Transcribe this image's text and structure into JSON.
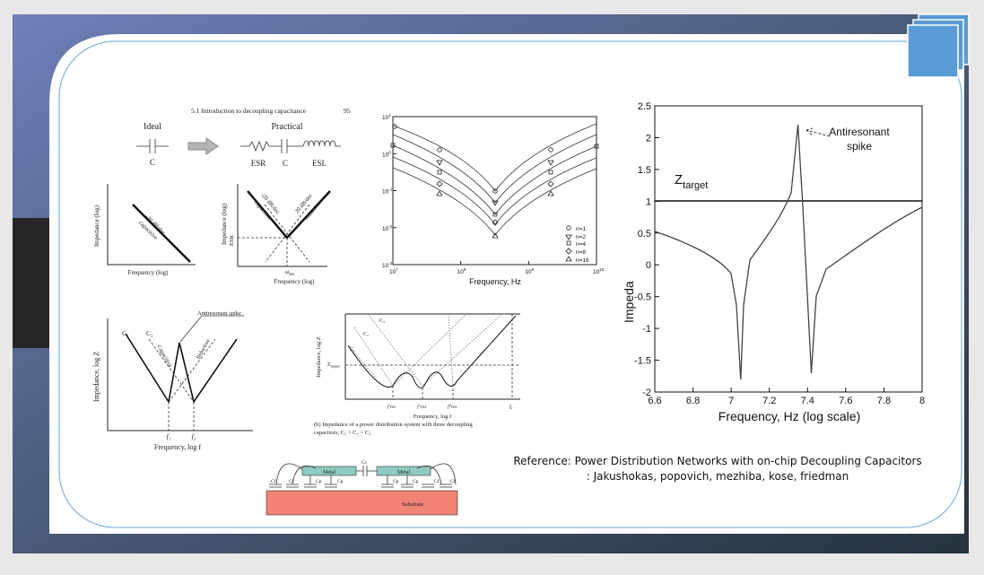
{
  "fig_intro": {
    "header": "5.1  Introduction to decoupling capacitance",
    "page": "95",
    "ideal": "Ideal",
    "practical": "Practical",
    "c_ideal": "C",
    "esr": "ESR",
    "c_practical": "C",
    "esl": "ESL",
    "plot1": {
      "ylabel": "Impedance (log)",
      "slope": "-20 dB/dec",
      "kind": "capacitive",
      "xlabel": "Frequency (log)"
    },
    "plot2": {
      "ylabel": "Impedance (log)",
      "esr": "ESR",
      "slope_cap": "-20 dB/dec",
      "cap": "capacitive",
      "slope_ind": "20 dB/dec",
      "ind": "inductive",
      "omega": "ω",
      "omega_sub": "res",
      "xlabel": "Frequency (log)"
    }
  },
  "fig_sim": {
    "yticks": [
      {
        "base": "10",
        "exp": "1"
      },
      {
        "base": "10",
        "exp": "0"
      },
      {
        "base": "10",
        "exp": "-1"
      },
      {
        "base": "10",
        "exp": "-2"
      },
      {
        "base": "10",
        "exp": "-3"
      }
    ],
    "xticks": [
      {
        "base": "10",
        "exp": "7"
      },
      {
        "base": "10",
        "exp": "8"
      },
      {
        "base": "10",
        "exp": "9"
      },
      {
        "base": "10",
        "exp": "10"
      }
    ],
    "xlabel": "Frequency, Hz",
    "legend": [
      "n=1",
      "n=2",
      "n=4",
      "n=8",
      "n=16"
    ]
  },
  "fig_anti": {
    "spike": "Antiresonant spike",
    "c1": "C₁",
    "c2": "C₂",
    "capacitive": "Capacitive",
    "inductive": "Inductive",
    "ylabel": "Impedance, log Z",
    "f1": "f₁",
    "f2": "f₂",
    "xlabel": "Frequency, log f"
  },
  "fig_pdn": {
    "c3": "C₃",
    "c2": "C₂",
    "c1": "C₁",
    "ylabel": "Impedance, log Z",
    "z": "Z",
    "z_sub": "target",
    "fres": [
      "f′res",
      "f″res",
      "f‴res"
    ],
    "f0": "f₀",
    "xlabel": "Frequency, log f",
    "caption": [
      "(b) Impedance of a power distribution system with three decoupling",
      "capacitors, C₁ > C₂ > C₃"
    ]
  },
  "fig_struct": {
    "substrate": "Substrate",
    "metal": [
      "Metal",
      "Metal"
    ],
    "cc": "Cc",
    "caps": [
      "Cf",
      "Cf",
      "Cp",
      "Cp",
      "Cp",
      "Cp",
      "Cf",
      "Cf"
    ]
  },
  "fig_right": {
    "yticks": [
      "2.5",
      "2",
      "1.5",
      "1",
      "0.5",
      "0",
      "-0.5",
      "-1",
      "-1.5",
      "-2"
    ],
    "xticks": [
      "6.6",
      "6.8",
      "7",
      "7.2",
      "7.4",
      "7.6",
      "7.8",
      "8"
    ],
    "annotation": [
      "Antiresonant",
      "spike"
    ],
    "z": "Z",
    "z_sub": "target",
    "ylabel": "Impeda",
    "xlabel": "Frequency, Hz (log scale)"
  },
  "reference": [
    "Reference: Power Distribution Networks with on-chip Decoupling Capacitors",
    ": Jakushokas, popovich, mezhiba, kose, friedman"
  ]
}
